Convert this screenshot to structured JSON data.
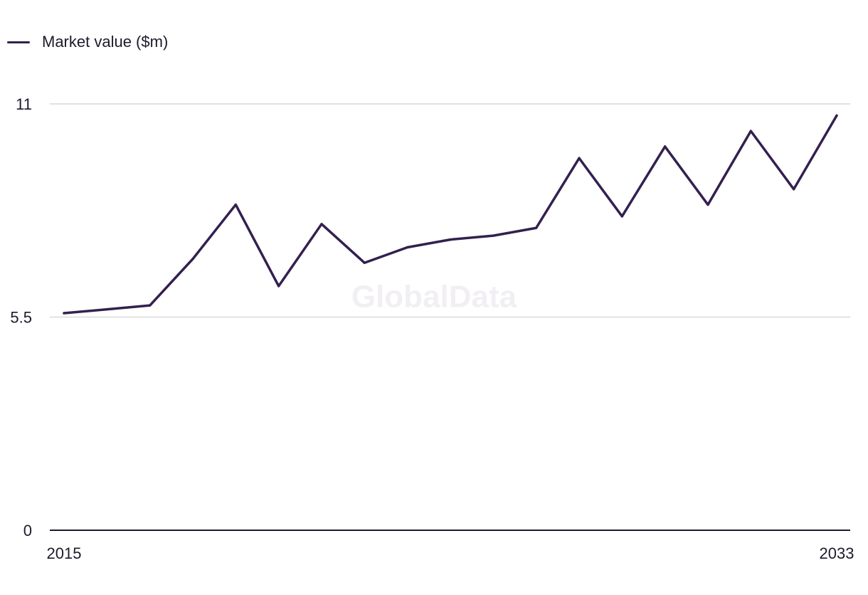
{
  "colors": {
    "series": "#33204f",
    "grid": "#d9d9de",
    "axis": "#1e1a2b"
  },
  "watermark": "GlobalData",
  "chart_data": {
    "type": "line",
    "title": "",
    "xlabel": "",
    "ylabel": "",
    "x": [
      2015,
      2016,
      2017,
      2018,
      2019,
      2020,
      2021,
      2022,
      2023,
      2024,
      2025,
      2026,
      2027,
      2028,
      2029,
      2030,
      2031,
      2032,
      2033
    ],
    "xticks": [
      "2015",
      "2033"
    ],
    "yticks": [
      "0",
      "5.5",
      "11"
    ],
    "ylim": [
      0,
      11
    ],
    "grid": true,
    "legend": "top-left",
    "series": [
      {
        "name": "Market value ($m)",
        "values": [
          5.6,
          5.7,
          5.8,
          7.0,
          8.4,
          6.3,
          7.9,
          6.9,
          7.3,
          7.5,
          7.6,
          7.8,
          9.6,
          8.1,
          9.9,
          8.4,
          10.3,
          8.8,
          10.7
        ]
      }
    ]
  }
}
